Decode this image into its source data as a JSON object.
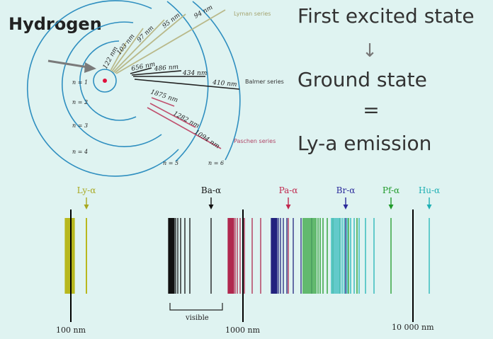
{
  "title": "Hydrogen",
  "right_panel": {
    "line1": "First excited state",
    "arrow_glyph": "↓",
    "line2": "Ground state",
    "equals": "=",
    "line3": "Ly-a emission"
  },
  "colors": {
    "background": "#dff3f1",
    "orbit": "#2f8fc0",
    "lyman": "#b9b98a",
    "balmer": "#222222",
    "paschen": "#c0506e",
    "nucleus": "#e0103c",
    "pointer": "#7a7a7a"
  },
  "atom": {
    "levels": [
      "n = 1",
      "n = 2",
      "n = 3",
      "n = 4",
      "n = 5",
      "n = 6"
    ],
    "lyman_label": "Lyman series",
    "balmer_label": "Balmer series",
    "paschen_label": "Paschen series",
    "lyman_lines": [
      "122 nm",
      "103 nm",
      "97 nm",
      "95 nm",
      "94 nm"
    ],
    "balmer_lines": [
      "656 nm",
      "486 nm",
      "434 nm",
      "410 nm"
    ],
    "paschen_lines": [
      "1875 nm",
      "1282 nm",
      "1094 nm"
    ]
  },
  "spectrum": {
    "series_markers": [
      {
        "label": "Ly-α",
        "color": "#a8a820"
      },
      {
        "label": "Ba-α",
        "color": "#111111"
      },
      {
        "label": "Pa-α",
        "color": "#c0284e"
      },
      {
        "label": "Br-α",
        "color": "#2a2a9a"
      },
      {
        "label": "Pf-α",
        "color": "#1f9a2a"
      },
      {
        "label": "Hu-α",
        "color": "#1fb0b4"
      }
    ],
    "visible_label": "visible",
    "axis_ticks": [
      "100 nm",
      "1000 nm",
      "10 000 nm"
    ]
  }
}
